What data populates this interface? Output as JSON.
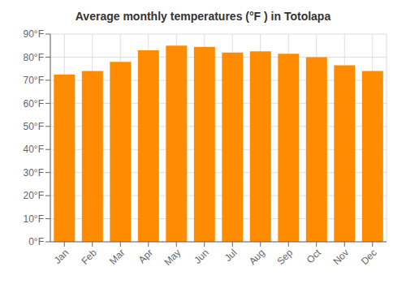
{
  "chart_data": {
    "type": "bar",
    "title": "Average monthly temperatures (°F ) in Totolapa",
    "categories": [
      "Jan",
      "Feb",
      "Mar",
      "Apr",
      "May",
      "Jun",
      "Jul",
      "Aug",
      "Sep",
      "Oct",
      "Nov",
      "Dec"
    ],
    "values": [
      72.5,
      74.0,
      78.0,
      83.0,
      85.0,
      84.5,
      82.0,
      82.5,
      81.5,
      80.0,
      76.5,
      74.0
    ],
    "color": "#FF8C00",
    "ylim": [
      0,
      90
    ],
    "yticks": [
      {
        "value": 0,
        "label": "0°F"
      },
      {
        "value": 10,
        "label": "10°F"
      },
      {
        "value": 20,
        "label": "20°F"
      },
      {
        "value": 30,
        "label": "30°F"
      },
      {
        "value": 40,
        "label": "40°F"
      },
      {
        "value": 50,
        "label": "50°F"
      },
      {
        "value": 60,
        "label": "60°F"
      },
      {
        "value": 70,
        "label": "70°F"
      },
      {
        "value": 80,
        "label": "80°F"
      },
      {
        "value": 90,
        "label": "90°F"
      }
    ],
    "grid": true
  }
}
